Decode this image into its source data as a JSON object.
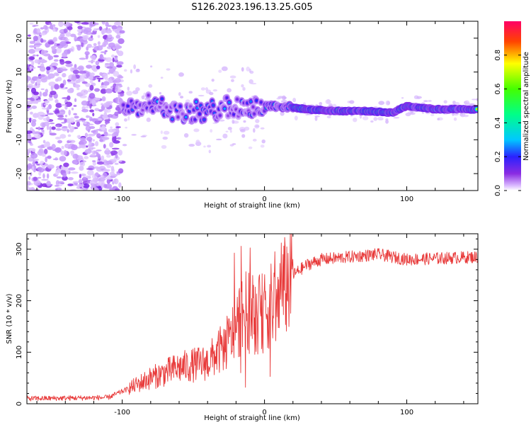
{
  "figure": {
    "title": "S126.2023.196.13.25.G05"
  },
  "colors": {
    "snr_line": "#e83a3a",
    "axes": "#000000",
    "background": "#ffffff"
  },
  "chart_data": [
    {
      "type": "heatmap",
      "title": "S126.2023.196.13.25.G05",
      "xlabel": "Height of straight line (km)",
      "ylabel": "Frequency (Hz)",
      "xlim": [
        -167,
        150
      ],
      "ylim": [
        -25,
        25
      ],
      "xticks": [
        -100,
        0,
        100
      ],
      "xtick_labels": [
        "-100",
        "0",
        "100"
      ],
      "yticks": [
        -20,
        -10,
        0,
        10,
        20
      ],
      "ytick_labels": [
        "-20",
        "-10",
        "0",
        "10",
        "20"
      ],
      "colorbar": {
        "label": "Normalized spectral amplitude",
        "range": [
          0,
          1
        ],
        "ticks": [
          0.0,
          0.2,
          0.4,
          0.6,
          0.8
        ],
        "tick_labels": [
          "0.0",
          "0.2",
          "0.4",
          "0.6",
          "0.8"
        ],
        "colormap": "hsv (violet → blue → cyan → green → yellow → red)"
      },
      "frequency_ridge": {
        "x": [
          -100,
          -80,
          -60,
          -40,
          -25,
          -15,
          -5,
          0,
          10,
          30,
          50,
          70,
          90,
          100,
          120,
          150
        ],
        "freq_hz": [
          0,
          1,
          -2,
          -2,
          0,
          -1,
          0,
          0,
          0,
          -1,
          -1.5,
          -1.5,
          -2,
          0,
          -1,
          -1
        ]
      }
    },
    {
      "type": "line",
      "xlabel": "Height of straight line (km)",
      "ylabel": "SNR (10 * v/v)",
      "xlim": [
        -167,
        150
      ],
      "ylim": [
        0,
        330
      ],
      "xticks": [
        -100,
        0,
        100
      ],
      "xtick_labels": [
        "-100",
        "0",
        "100"
      ],
      "yticks": [
        0,
        100,
        200,
        300
      ],
      "ytick_labels": [
        "0",
        "100",
        "200",
        "300"
      ],
      "series": [
        {
          "name": "SNR",
          "envelope_x": [
            -167,
            -110,
            -95,
            -80,
            -60,
            -40,
            -25,
            -15,
            -5,
            0,
            10,
            15,
            20,
            30,
            40,
            60,
            80,
            100,
            120,
            150
          ],
          "envelope_y": [
            10,
            12,
            30,
            50,
            70,
            80,
            120,
            180,
            170,
            180,
            200,
            230,
            250,
            270,
            280,
            285,
            290,
            280,
            282,
            285
          ]
        }
      ]
    }
  ]
}
